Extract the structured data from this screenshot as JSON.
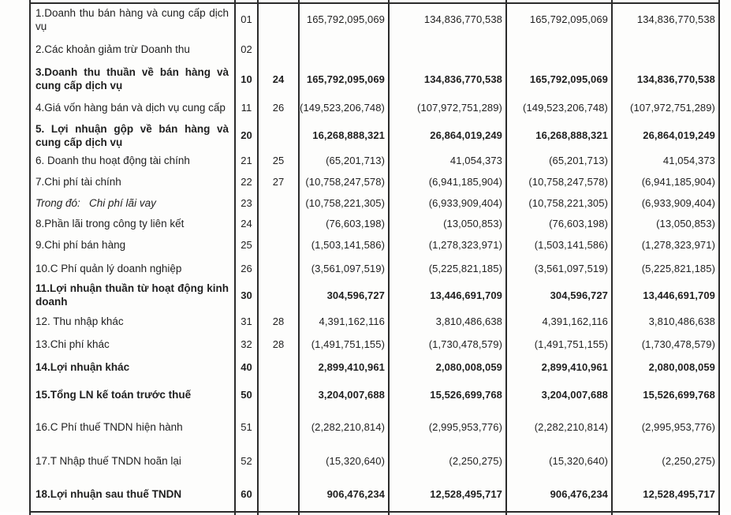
{
  "colors": {
    "text": "#1f1f1f",
    "border": "#2b2b2b",
    "background": "#fdfdfc"
  },
  "table": {
    "column_names": [
      "item",
      "code",
      "note",
      "value_1",
      "value_2",
      "value_3",
      "value_4"
    ],
    "rows": [
      {
        "item": "1.Doanh thu bán hàng và cung cấp dịch vụ",
        "code": "01",
        "note": "",
        "values": [
          "165,792,095,069",
          "134,836,770,538",
          "165,792,095,069",
          "134,836,770,538"
        ],
        "bold": false,
        "italic": false
      },
      {
        "item": "2.Các khoản giảm trừ Doanh thu",
        "code": "02",
        "note": "",
        "values": [
          "",
          "",
          "",
          ""
        ],
        "bold": false,
        "italic": false
      },
      {
        "item": "3.Doanh thu thuần về bán hàng và cung cấp dịch vụ",
        "code": "10",
        "note": "24",
        "values": [
          "165,792,095,069",
          "134,836,770,538",
          "165,792,095,069",
          "134,836,770,538"
        ],
        "bold": true,
        "italic": false
      },
      {
        "item": "4.Giá vốn hàng bán và dịch vụ cung cấp",
        "code": "11",
        "note": "26",
        "values": [
          "(149,523,206,748)",
          "(107,972,751,289)",
          "(149,523,206,748)",
          "(107,972,751,289)"
        ],
        "bold": false,
        "italic": false
      },
      {
        "item": "5. Lợi nhuận gộp về bán hàng và cung cấp dịch vụ",
        "code": "20",
        "note": "",
        "values": [
          "16,268,888,321",
          "26,864,019,249",
          "16,268,888,321",
          "26,864,019,249"
        ],
        "bold": true,
        "italic": false
      },
      {
        "item": "6. Doanh thu hoạt động tài chính",
        "code": "21",
        "note": "25",
        "values": [
          "(65,201,713)",
          "41,054,373",
          "(65,201,713)",
          "41,054,373"
        ],
        "bold": false,
        "italic": false
      },
      {
        "item": "7.Chi phí tài chính",
        "code": "22",
        "note": "27",
        "values": [
          "(10,758,247,578)",
          "(6,941,185,904)",
          "(10,758,247,578)",
          "(6,941,185,904)"
        ],
        "bold": false,
        "italic": false
      },
      {
        "item": "Trong đó:   Chi phí lãi vay",
        "code": "23",
        "note": "",
        "values": [
          "(10,758,221,305)",
          "(6,933,909,404)",
          "(10,758,221,305)",
          "(6,933,909,404)"
        ],
        "bold": false,
        "italic": true
      },
      {
        "item": "8.Phần lãi trong công ty liên kết",
        "code": "24",
        "note": "",
        "values": [
          "(76,603,198)",
          "(13,050,853)",
          "(76,603,198)",
          "(13,050,853)"
        ],
        "bold": false,
        "italic": false
      },
      {
        "item": "9.Chi phí bán hàng",
        "code": "25",
        "note": "",
        "values": [
          "(1,503,141,586)",
          "(1,278,323,971)",
          "(1,503,141,586)",
          "(1,278,323,971)"
        ],
        "bold": false,
        "italic": false
      },
      {
        "item": "10.C Phí quản lý doanh nghiệp",
        "code": "26",
        "note": "",
        "values": [
          "(3,561,097,519)",
          "(5,225,821,185)",
          "(3,561,097,519)",
          "(5,225,821,185)"
        ],
        "bold": false,
        "italic": false
      },
      {
        "item": "11.Lợi nhuận thuần từ hoạt động kinh doanh",
        "code": "30",
        "note": "",
        "values": [
          "304,596,727",
          "13,446,691,709",
          "304,596,727",
          "13,446,691,709"
        ],
        "bold": true,
        "italic": false
      },
      {
        "item": "12. Thu nhập khác",
        "code": "31",
        "note": "28",
        "values": [
          "4,391,162,116",
          "3,810,486,638",
          "4,391,162,116",
          "3,810,486,638"
        ],
        "bold": false,
        "italic": false
      },
      {
        "item": "13.Chi phí khác",
        "code": "32",
        "note": "28",
        "values": [
          "(1,491,751,155)",
          "(1,730,478,579)",
          "(1,491,751,155)",
          "(1,730,478,579)"
        ],
        "bold": false,
        "italic": false
      },
      {
        "item": "14.Lợi nhuận khác",
        "code": "40",
        "note": "",
        "values": [
          "2,899,410,961",
          "2,080,008,059",
          "2,899,410,961",
          "2,080,008,059"
        ],
        "bold": true,
        "italic": false
      },
      {
        "item": "15.Tổng LN kế toán trước thuế",
        "code": "50",
        "note": "",
        "values": [
          "3,204,007,688",
          "15,526,699,768",
          "3,204,007,688",
          "15,526,699,768"
        ],
        "bold": true,
        "italic": false
      },
      {
        "item": "16.C Phí thuế TNDN hiện hành",
        "code": "51",
        "note": "",
        "values": [
          "(2,282,210,814)",
          "(2,995,953,776)",
          "(2,282,210,814)",
          "(2,995,953,776)"
        ],
        "bold": false,
        "italic": false
      },
      {
        "item": "17.T Nhập thuế TNDN hoãn lại",
        "code": "52",
        "note": "",
        "values": [
          "(15,320,640)",
          "(2,250,275)",
          "(15,320,640)",
          "(2,250,275)"
        ],
        "bold": false,
        "italic": false
      },
      {
        "item": "18.Lợi nhuận sau thuế TNDN",
        "code": "60",
        "note": "",
        "values": [
          "906,476,234",
          "12,528,495,717",
          "906,476,234",
          "12,528,495,717"
        ],
        "bold": true,
        "italic": false
      }
    ]
  }
}
